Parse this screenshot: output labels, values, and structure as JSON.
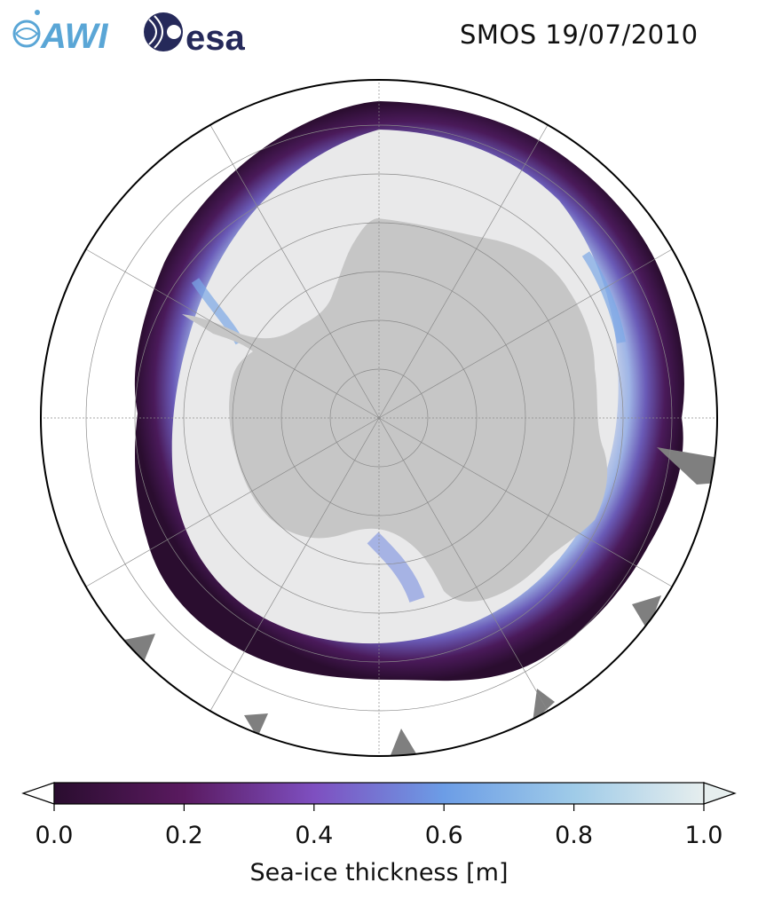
{
  "header": {
    "title": "SMOS 19/07/2010",
    "logos": [
      "AWI",
      "esa"
    ]
  },
  "map": {
    "projection": "south-polar-stereographic",
    "colors": {
      "continent": "#c6c6c6",
      "thick_ice": "#e9e9ea",
      "ocean": "#ffffff",
      "no_data": "#7f7f7f",
      "grid": "#8a8a8a"
    }
  },
  "colorbar": {
    "label": "Sea-ice thickness [m]",
    "ticks": [
      "0.0",
      "0.2",
      "0.4",
      "0.6",
      "0.8",
      "1.0"
    ],
    "vmin": 0.0,
    "vmax": 1.0,
    "extend": "both",
    "colormap": [
      "#2a0d2f",
      "#5a1a60",
      "#7e4fc0",
      "#6c9de6",
      "#9fcbe8",
      "#e6eeee"
    ]
  }
}
